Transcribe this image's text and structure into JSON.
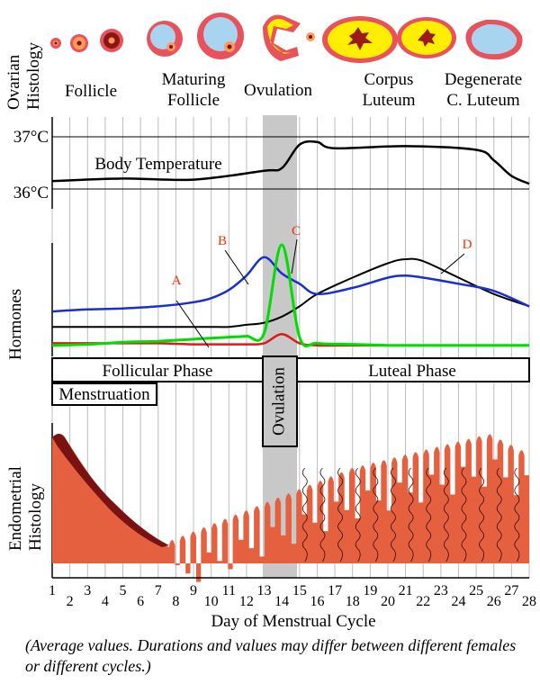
{
  "ovarian": {
    "axis_label": "Ovarian Histology",
    "stages": {
      "follicle": "Follicle",
      "maturing_1": "Maturing",
      "maturing_2": "Follicle",
      "ovulation": "Ovulation",
      "corpus_1": "Corpus",
      "corpus_2": "Luteum",
      "degenerate_1": "Degenerate",
      "degenerate_2": "C. Luteum"
    }
  },
  "temperature": {
    "label": "Body Temperature",
    "tick_high": "37°C",
    "tick_low": "36°C"
  },
  "hormones": {
    "axis_label": "Hormones",
    "letters": {
      "a": "A",
      "b": "B",
      "c": "C",
      "d": "D"
    }
  },
  "phases": {
    "follicular": "Follicular Phase",
    "menstruation": "Menstruation",
    "ovulation": "Ovulation",
    "luteal": "Luteal Phase"
  },
  "endometrium": {
    "axis_label": "Endometrial Histology"
  },
  "x_axis": {
    "title": "Day of Menstrual Cycle",
    "days": [
      "1",
      "2",
      "3",
      "4",
      "5",
      "6",
      "7",
      "8",
      "9",
      "10",
      "11",
      "12",
      "13",
      "14",
      "15",
      "16",
      "17",
      "18",
      "19",
      "20",
      "21",
      "22",
      "23",
      "24",
      "25",
      "26",
      "27",
      "28"
    ]
  },
  "caption": "(Average values. Durations and values may differ between different females or different cycles.)",
  "colors": {
    "grid": "#bdbdbd",
    "band": "#c8c8c8",
    "lh": "#00dd00",
    "fsh": "#1a2fcc",
    "estrogen_red": "#dd1a1a",
    "progesterone": "#000000",
    "label_red": "#ee3300",
    "endometrium_fill": "#e4603e",
    "endometrium_dark": "#7a1212",
    "follicle_ring": "#e8525a",
    "corpus_yellow": "#ffee00"
  },
  "chart_data": [
    {
      "type": "line",
      "title": "Body Temperature",
      "x": [
        1,
        5,
        9,
        13,
        14,
        15,
        16,
        17,
        21,
        25,
        26,
        27,
        28
      ],
      "series": [
        {
          "name": "Body Temperature (°C)",
          "values": [
            36.15,
            36.2,
            36.18,
            36.35,
            36.4,
            36.85,
            36.9,
            36.78,
            36.82,
            36.75,
            36.55,
            36.25,
            36.1
          ]
        }
      ],
      "ylabel": "°C",
      "ylim": [
        36,
        37
      ]
    },
    {
      "type": "line",
      "title": "Hormones",
      "x": [
        1,
        3,
        5,
        7,
        9,
        10,
        11,
        12,
        13,
        14,
        15,
        16,
        18,
        20,
        21,
        22,
        24,
        26,
        28
      ],
      "series": [
        {
          "name": "A",
          "values": [
            4,
            4,
            4,
            4,
            3,
            3,
            3,
            3,
            4,
            13,
            4,
            2,
            2,
            2,
            2,
            2,
            2,
            2,
            2
          ]
        },
        {
          "name": "B",
          "values": [
            35,
            37,
            38,
            40,
            44,
            48,
            56,
            70,
            88,
            72,
            62,
            52,
            58,
            68,
            70,
            68,
            62,
            55,
            40
          ]
        },
        {
          "name": "C",
          "values": [
            2,
            3,
            5,
            6,
            8,
            9,
            10,
            11,
            14,
            100,
            10,
            4,
            3,
            2,
            2,
            2,
            2,
            2,
            2
          ]
        },
        {
          "name": "D",
          "values": [
            20,
            20,
            20,
            20,
            20,
            20,
            20,
            22,
            24,
            30,
            40,
            52,
            68,
            82,
            86,
            84,
            68,
            52,
            40
          ]
        }
      ]
    }
  ]
}
